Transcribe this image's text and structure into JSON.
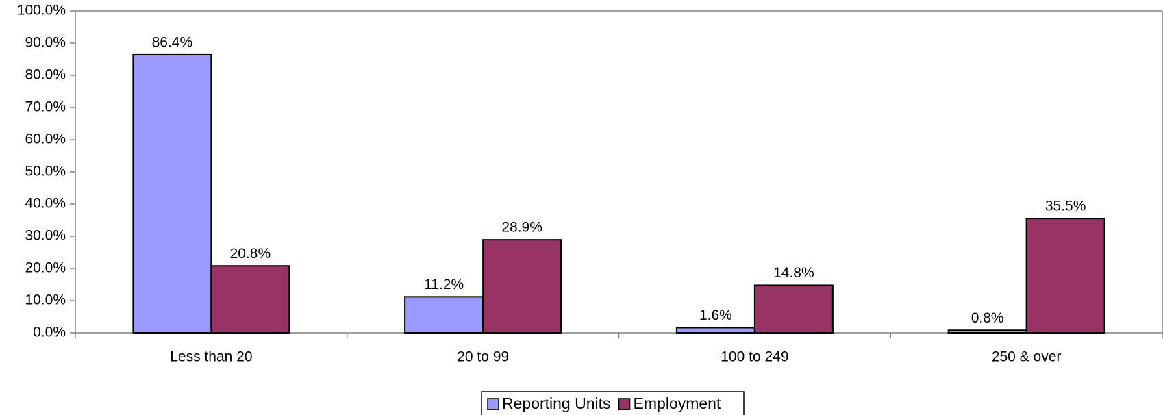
{
  "chart_data": {
    "type": "bar",
    "categories": [
      "Less than 20",
      "20 to 99",
      "100 to 249",
      "250 & over"
    ],
    "series": [
      {
        "name": "Reporting Units",
        "color": "#9999ff",
        "values": [
          86.4,
          11.2,
          1.6,
          0.8
        ],
        "value_labels": [
          "86.4%",
          "11.2%",
          "1.6%",
          "0.8%"
        ]
      },
      {
        "name": "Employment",
        "color": "#993366",
        "values": [
          20.8,
          28.9,
          14.8,
          35.5
        ],
        "value_labels": [
          "20.8%",
          "28.9%",
          "14.8%",
          "35.5%"
        ]
      }
    ],
    "ylim": [
      0,
      100
    ],
    "yticks": [
      {
        "value": 0,
        "label": "0.0%"
      },
      {
        "value": 10,
        "label": "10.0%"
      },
      {
        "value": 20,
        "label": "20.0%"
      },
      {
        "value": 30,
        "label": "30.0%"
      },
      {
        "value": 40,
        "label": "40.0%"
      },
      {
        "value": 50,
        "label": "50.0%"
      },
      {
        "value": 60,
        "label": "60.0%"
      },
      {
        "value": 70,
        "label": "70.0%"
      },
      {
        "value": 80,
        "label": "80.0%"
      },
      {
        "value": 90,
        "label": "90.0%"
      },
      {
        "value": 100,
        "label": "100.0%"
      }
    ],
    "legend": "bottom"
  }
}
